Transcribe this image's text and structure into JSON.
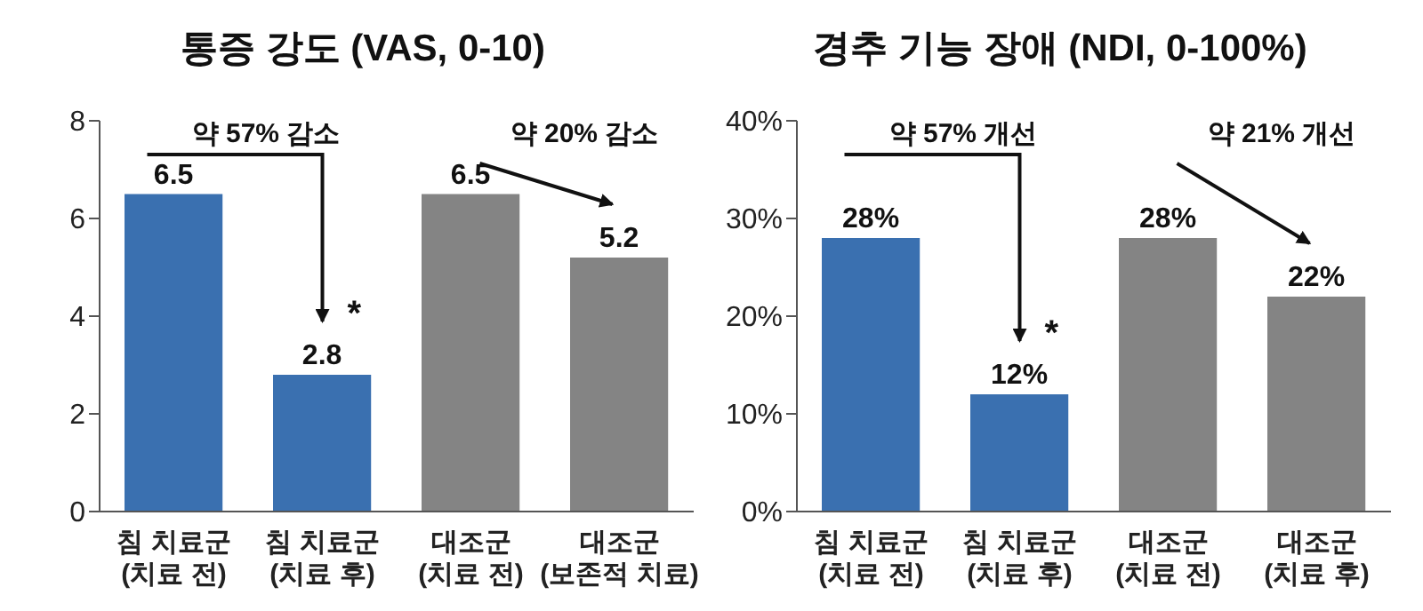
{
  "chart_data": [
    {
      "type": "bar",
      "title": "통증 강도 (VAS, 0-10)",
      "categories": [
        "침 치료군\n(치료 전)",
        "침 치료군\n(치료 후)",
        "대조군\n(치료 전)",
        "대조군\n(보존적 치료)"
      ],
      "values": [
        6.5,
        2.8,
        6.5,
        5.2
      ],
      "colors": [
        "#3a70b0",
        "#3a70b0",
        "#848484",
        "#848484"
      ],
      "ylim": [
        0,
        8
      ],
      "yticks": [
        0,
        2,
        4,
        6,
        8
      ],
      "data_labels": true,
      "grid": false,
      "legend": false,
      "annotations": [
        "약 57% 감소",
        "약 20% 감소",
        "*"
      ]
    },
    {
      "type": "bar",
      "title": "경추 기능 장애 (NDI, 0-100%)",
      "categories": [
        "침 치료군\n(치료 전)",
        "침 치료군\n(치료 후)",
        "대조군\n(치료 전)",
        "대조군\n(치료 후)"
      ],
      "values": [
        28,
        12,
        28,
        22
      ],
      "value_labels": [
        "28%",
        "12%",
        "28%",
        "22%"
      ],
      "colors": [
        "#3a70b0",
        "#3a70b0",
        "#848484",
        "#848484"
      ],
      "ylim": [
        0,
        40
      ],
      "yticks": [
        {
          "value": 0,
          "label": "0%"
        },
        {
          "value": 10,
          "label": "10%"
        },
        {
          "value": 20,
          "label": "20%"
        },
        {
          "value": 30,
          "label": "30%"
        },
        {
          "value": 40,
          "label": "40%"
        }
      ],
      "grid": false,
      "legend": false,
      "annotations": [
        "약 57% 개선",
        "약 21% 개선",
        "*"
      ]
    }
  ]
}
